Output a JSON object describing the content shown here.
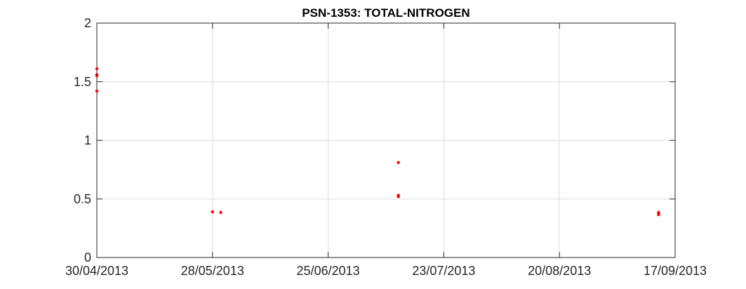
{
  "chart_data": {
    "type": "scatter",
    "title": "PSN-1353: TOTAL-NITROGEN",
    "xlabel": "",
    "ylabel": "",
    "x_axis_type": "date",
    "xlim": [
      "2013-04-30",
      "2013-09-17"
    ],
    "ylim": [
      0,
      2
    ],
    "x_ticks": [
      {
        "date": "2013-04-30",
        "label": "30/04/2013"
      },
      {
        "date": "2013-05-28",
        "label": "28/05/2013"
      },
      {
        "date": "2013-06-25",
        "label": "25/06/2013"
      },
      {
        "date": "2013-07-23",
        "label": "23/07/2013"
      },
      {
        "date": "2013-08-20",
        "label": "20/08/2013"
      },
      {
        "date": "2013-09-17",
        "label": "17/09/2013"
      }
    ],
    "y_ticks": [
      {
        "value": 0,
        "label": "0"
      },
      {
        "value": 0.5,
        "label": "0.5"
      },
      {
        "value": 1,
        "label": "1"
      },
      {
        "value": 1.5,
        "label": "1.5"
      },
      {
        "value": 2,
        "label": "2"
      }
    ],
    "grid": true,
    "marker_color": "#ff0000",
    "points": [
      {
        "x": "2013-04-30",
        "y": 1.61
      },
      {
        "x": "2013-04-30",
        "y": 1.56
      },
      {
        "x": "2013-04-30",
        "y": 1.55
      },
      {
        "x": "2013-04-30",
        "y": 1.42
      },
      {
        "x": "2013-05-28",
        "y": 0.39
      },
      {
        "x": "2013-05-30",
        "y": 0.385
      },
      {
        "x": "2013-07-12",
        "y": 0.81
      },
      {
        "x": "2013-07-12",
        "y": 0.53
      },
      {
        "x": "2013-07-12",
        "y": 0.52
      },
      {
        "x": "2013-09-13",
        "y": 0.385
      },
      {
        "x": "2013-09-13",
        "y": 0.375
      },
      {
        "x": "2013-09-13",
        "y": 0.365
      }
    ]
  }
}
